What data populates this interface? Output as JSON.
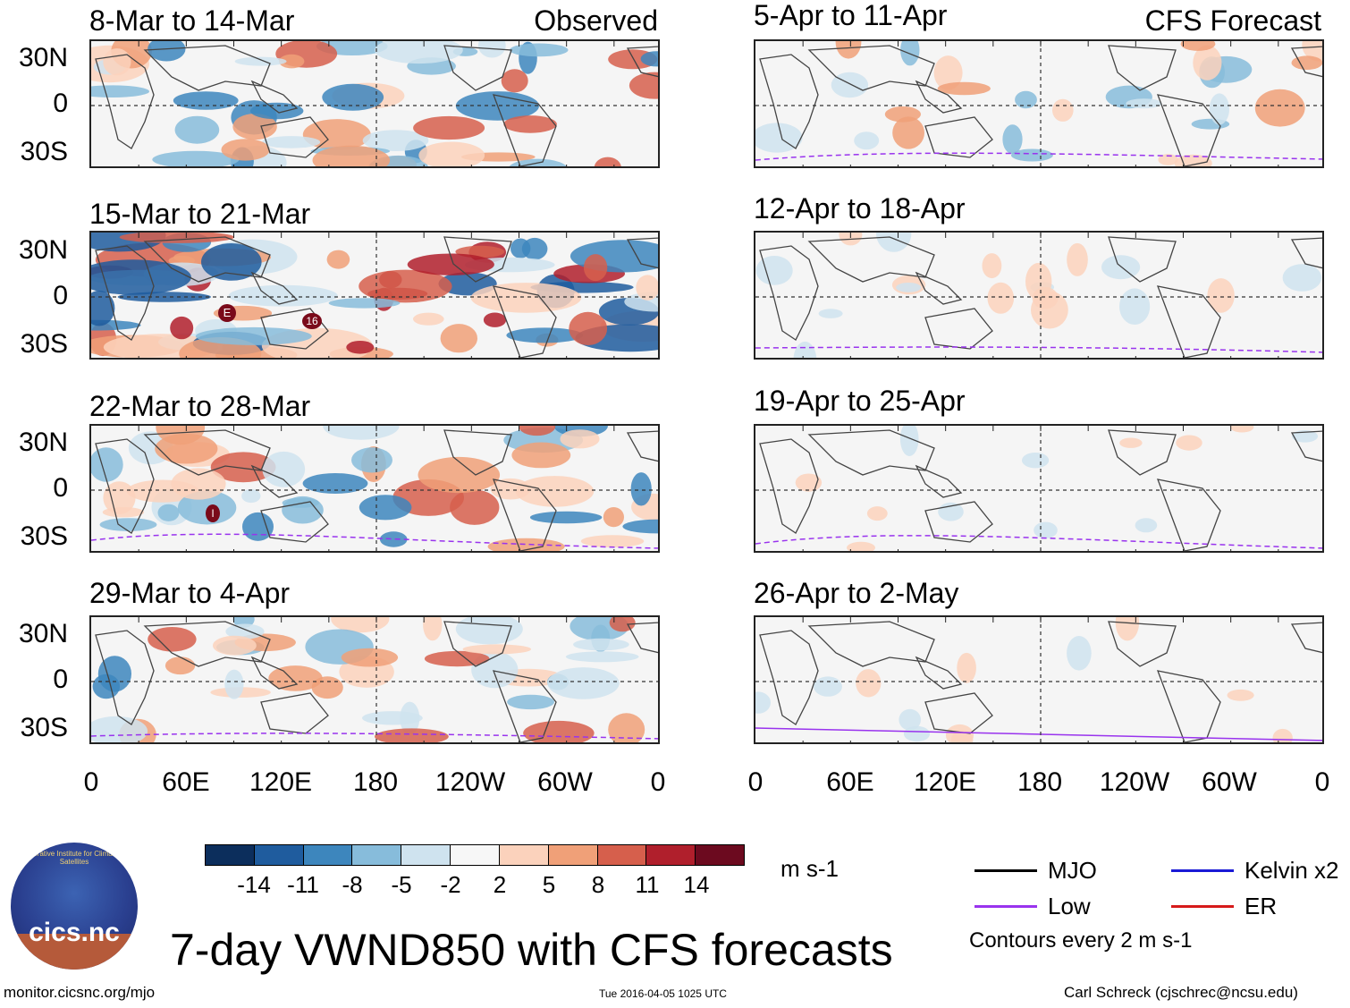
{
  "observed_label": "Observed",
  "forecast_label": "CFS Forecast",
  "observed_panels": [
    {
      "title": "8-Mar to 14-Mar"
    },
    {
      "title": "15-Mar to 21-Mar"
    },
    {
      "title": "22-Mar to 28-Mar"
    },
    {
      "title": "29-Mar to 4-Apr"
    }
  ],
  "forecast_panels": [
    {
      "title": "5-Apr to 11-Apr"
    },
    {
      "title": "12-Apr to 18-Apr"
    },
    {
      "title": "19-Apr to 25-Apr"
    },
    {
      "title": "26-Apr to 2-May"
    }
  ],
  "lat_ticks": [
    "30N",
    "0",
    "30S"
  ],
  "lon_ticks": [
    "0",
    "60E",
    "120E",
    "180",
    "120W",
    "60W",
    "0"
  ],
  "storm_labels": [
    "E",
    "16",
    "I"
  ],
  "colorbar": {
    "unit": "m s-1",
    "labels": [
      "-14",
      "-11",
      "-8",
      "-5",
      "-2",
      "2",
      "5",
      "8",
      "11",
      "14"
    ],
    "colors": [
      "#0c2e5c",
      "#1f5c9e",
      "#3d86bd",
      "#87bcdb",
      "#cfe3ef",
      "#f7f7f7",
      "#fbd2bc",
      "#f0a078",
      "#d65f4c",
      "#b01f2c",
      "#6c0a1f"
    ]
  },
  "legend": {
    "mjo": "MJO",
    "kelvin": "Kelvin x2",
    "low": "Low",
    "er": "ER",
    "contours": "Contours every 2 m s-1",
    "colors": {
      "mjo": "#000000",
      "kelvin": "#1a1ad6",
      "low": "#9933ee",
      "er": "#d61a1a"
    }
  },
  "logo_text": "cics.nc",
  "logo_ring_text": "Cooperative Institute for Climate and Satellites",
  "main_title": "7-day VWND850 with CFS forecasts",
  "footer": {
    "left": "monitor.cicsnc.org/mjo",
    "center": "Tue 2016-04-05 1025 UTC",
    "right": "Carl Schreck (cjschrec@ncsu.edu)"
  }
}
